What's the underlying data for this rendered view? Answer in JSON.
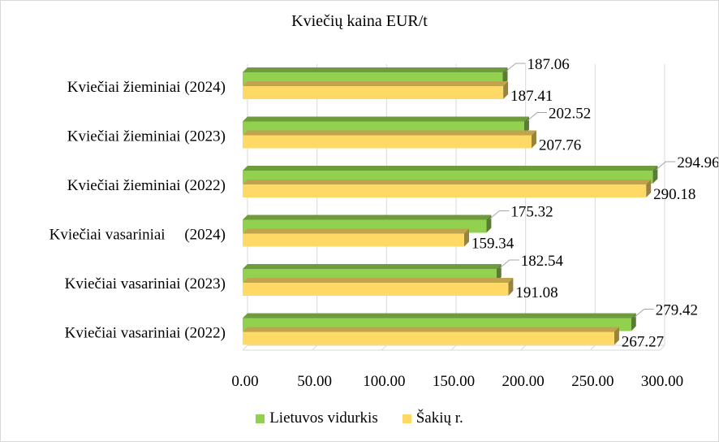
{
  "chart_data": {
    "type": "bar",
    "orientation": "horizontal",
    "title": "Kviečių kaina EUR/t",
    "categories": [
      "Kviečiai žieminiai (2024)",
      "Kviečiai žieminiai (2023)",
      "Kviečiai žieminiai (2022)",
      "Kviečiai vasariniai     (2024)",
      "Kviečiai vasariniai (2023)",
      "Kviečiai vasariniai (2022)"
    ],
    "series": [
      {
        "name": "Lietuvos vidurkis",
        "color": "#92d050",
        "values": [
          187.06,
          202.52,
          294.96,
          175.32,
          182.54,
          279.42
        ],
        "labels": [
          "187.06",
          "202.52",
          "294.96",
          "175.32",
          "182.54",
          "279.42"
        ]
      },
      {
        "name": "Šakių r.",
        "color": "#ffd966",
        "values": [
          187.41,
          207.76,
          290.18,
          159.34,
          191.08,
          267.27
        ],
        "labels": [
          "187.41",
          "207.76",
          "290.18",
          "159.34",
          "191.08",
          "267.27"
        ]
      }
    ],
    "x_ticks": [
      "0.00",
      "50.00",
      "100.00",
      "150.00",
      "200.00",
      "250.00",
      "300.00"
    ],
    "xlim": [
      0,
      300
    ],
    "grid": true,
    "legend_position": "bottom",
    "style": "3d-clustered-bar"
  }
}
